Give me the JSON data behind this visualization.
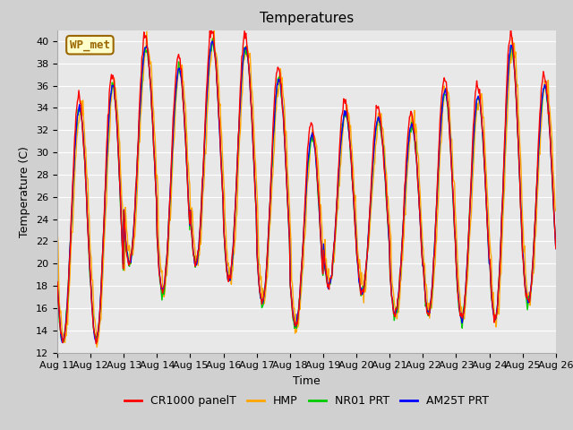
{
  "title": "Temperatures",
  "xlabel": "Time",
  "ylabel": "Temperature (C)",
  "ylim": [
    12,
    41
  ],
  "yticks": [
    12,
    14,
    16,
    18,
    20,
    22,
    24,
    26,
    28,
    30,
    32,
    34,
    36,
    38,
    40
  ],
  "x_labels": [
    "Aug 11",
    "Aug 12",
    "Aug 13",
    "Aug 14",
    "Aug 15",
    "Aug 16",
    "Aug 17",
    "Aug 18",
    "Aug 19",
    "Aug 20",
    "Aug 21",
    "Aug 22",
    "Aug 23",
    "Aug 24",
    "Aug 25",
    "Aug 26"
  ],
  "series_colors": {
    "CR1000 panelT": "#ff0000",
    "HMP": "#ffa500",
    "NR01 PRT": "#00cc00",
    "AM25T PRT": "#0000ff"
  },
  "annotation_text": "WP_met",
  "annotation_bg": "#ffffcc",
  "annotation_border": "#996600",
  "fig_bg": "#d0d0d0",
  "plot_bg": "#e8e8e8",
  "grid_color": "#ffffff",
  "title_fontsize": 11,
  "axis_fontsize": 9,
  "tick_fontsize": 8,
  "linewidth": 1.0,
  "n_days": 15,
  "pts_per_day": 48
}
